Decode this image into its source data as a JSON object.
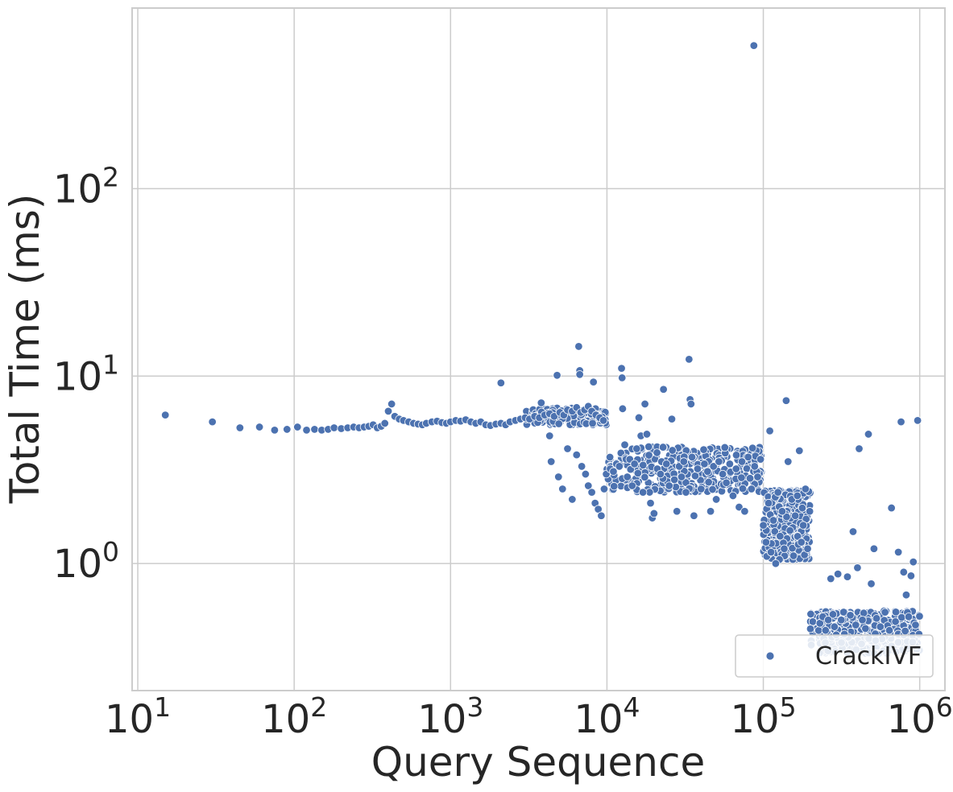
{
  "chart_data": {
    "type": "scatter",
    "title": "",
    "xlabel": "Query Sequence",
    "ylabel": "Total Time (ms)",
    "x_scale": "log",
    "y_scale": "log",
    "xlim": [
      9.2,
      1450000
    ],
    "ylim": [
      0.21,
      920
    ],
    "x_ticks": [
      10,
      100,
      1000,
      10000,
      100000,
      1000000
    ],
    "x_tick_labels": [
      {
        "base": "10",
        "exp": "1"
      },
      {
        "base": "10",
        "exp": "2"
      },
      {
        "base": "10",
        "exp": "3"
      },
      {
        "base": "10",
        "exp": "4"
      },
      {
        "base": "10",
        "exp": "5"
      },
      {
        "base": "10",
        "exp": "6"
      }
    ],
    "y_ticks": [
      1,
      10,
      100
    ],
    "y_tick_labels": [
      {
        "base": "10",
        "exp": "0"
      },
      {
        "base": "10",
        "exp": "1"
      },
      {
        "base": "10",
        "exp": "2"
      }
    ],
    "grid": true,
    "legend_position": "lower right",
    "series": [
      {
        "name": "CrackIVF",
        "color": "#4c72b0",
        "points": [
          [
            15,
            6.2
          ],
          [
            30,
            5.7
          ],
          [
            45,
            5.3
          ],
          [
            60,
            5.35
          ],
          [
            75,
            5.15
          ],
          [
            90,
            5.2
          ],
          [
            105,
            5.35
          ],
          [
            120,
            5.15
          ],
          [
            135,
            5.2
          ],
          [
            150,
            5.15
          ],
          [
            165,
            5.2
          ],
          [
            180,
            5.3
          ],
          [
            200,
            5.25
          ],
          [
            220,
            5.3
          ],
          [
            240,
            5.35
          ],
          [
            260,
            5.3
          ],
          [
            280,
            5.35
          ],
          [
            300,
            5.4
          ],
          [
            320,
            5.5
          ],
          [
            340,
            5.3
          ],
          [
            360,
            5.4
          ],
          [
            380,
            5.6
          ],
          [
            400,
            6.5
          ],
          [
            420,
            7.1
          ],
          [
            440,
            6.1
          ],
          [
            470,
            5.9
          ],
          [
            500,
            5.8
          ],
          [
            540,
            5.7
          ],
          [
            580,
            5.6
          ],
          [
            620,
            5.55
          ],
          [
            660,
            5.5
          ],
          [
            700,
            5.6
          ],
          [
            760,
            5.7
          ],
          [
            820,
            5.75
          ],
          [
            880,
            5.65
          ],
          [
            940,
            5.6
          ],
          [
            1000,
            5.7
          ],
          [
            1080,
            5.8
          ],
          [
            1160,
            5.75
          ],
          [
            1250,
            5.85
          ],
          [
            1350,
            5.7
          ],
          [
            1450,
            5.6
          ],
          [
            1560,
            5.7
          ],
          [
            1680,
            5.5
          ],
          [
            1800,
            5.45
          ],
          [
            1950,
            5.55
          ],
          [
            2100,
            5.6
          ],
          [
            2250,
            5.5
          ],
          [
            2400,
            5.7
          ],
          [
            2600,
            5.8
          ],
          [
            2800,
            5.9
          ],
          [
            3000,
            6.0
          ],
          [
            3200,
            5.9
          ],
          [
            3450,
            6.1
          ],
          [
            3700,
            6.0
          ],
          [
            4000,
            6.2
          ],
          [
            4300,
            6.3
          ],
          [
            4600,
            6.1
          ],
          [
            5000,
            6.4
          ],
          [
            5300,
            6.2
          ],
          [
            5600,
            6.6
          ],
          [
            6000,
            6.5
          ],
          [
            6400,
            6.8
          ],
          [
            6800,
            6.4
          ],
          [
            7200,
            6.6
          ],
          [
            7600,
            6.9
          ],
          [
            8000,
            6.5
          ],
          [
            8500,
            6.2
          ],
          [
            9000,
            6.0
          ],
          [
            9500,
            5.8
          ],
          [
            2100,
            9.2
          ],
          [
            4800,
            10.1
          ],
          [
            6600,
            14.4
          ],
          [
            6700,
            10.7
          ],
          [
            6700,
            10.2
          ],
          [
            8200,
            9.3
          ],
          [
            3800,
            7.2
          ],
          [
            4300,
            4.8
          ],
          [
            4400,
            3.5
          ],
          [
            4900,
            2.9
          ],
          [
            5200,
            2.5
          ],
          [
            5600,
            4.1
          ],
          [
            6000,
            2.2
          ],
          [
            6400,
            3.8
          ],
          [
            6900,
            3.3
          ],
          [
            7300,
            3.0
          ],
          [
            7600,
            2.6
          ],
          [
            8000,
            2.4
          ],
          [
            8400,
            2.1
          ],
          [
            8800,
            1.95
          ],
          [
            9200,
            1.8
          ],
          [
            9600,
            2.5
          ],
          [
            9900,
            3.0
          ],
          [
            10500,
            3.2
          ],
          [
            11000,
            3.1
          ],
          [
            11500,
            3.4
          ],
          [
            12000,
            3.3
          ],
          [
            12400,
            11.0
          ],
          [
            12500,
            9.8
          ],
          [
            12600,
            6.7
          ],
          [
            13000,
            4.3
          ],
          [
            13500,
            2.9
          ],
          [
            14000,
            3.6
          ],
          [
            14500,
            2.6
          ],
          [
            15000,
            3.4
          ],
          [
            15500,
            4.1
          ],
          [
            16000,
            6.0
          ],
          [
            16500,
            4.8
          ],
          [
            17000,
            2.4
          ],
          [
            17500,
            7.1
          ],
          [
            18000,
            4.9
          ],
          [
            18500,
            4.2
          ],
          [
            19000,
            2.1
          ],
          [
            19500,
            1.75
          ],
          [
            20000,
            1.85
          ],
          [
            21000,
            3.2
          ],
          [
            22000,
            3.0
          ],
          [
            23000,
            8.5
          ],
          [
            24000,
            3.4
          ],
          [
            25000,
            2.6
          ],
          [
            26000,
            5.9
          ],
          [
            27000,
            2.8
          ],
          [
            28000,
            1.9
          ],
          [
            29000,
            3.3
          ],
          [
            30000,
            2.9
          ],
          [
            31000,
            3.5
          ],
          [
            32000,
            2.4
          ],
          [
            33500,
            12.3
          ],
          [
            34000,
            7.5
          ],
          [
            34500,
            7.1
          ],
          [
            35000,
            3.7
          ],
          [
            36000,
            1.8
          ],
          [
            38000,
            3.2
          ],
          [
            40000,
            2.5
          ],
          [
            42000,
            3.4
          ],
          [
            44000,
            3.1
          ],
          [
            46000,
            1.9
          ],
          [
            48000,
            3.3
          ],
          [
            50000,
            2.2
          ],
          [
            52000,
            3.5
          ],
          [
            55000,
            3.0
          ],
          [
            58000,
            2.7
          ],
          [
            61000,
            3.4
          ],
          [
            64000,
            2.3
          ],
          [
            67000,
            3.2
          ],
          [
            70000,
            2.0
          ],
          [
            73000,
            3.5
          ],
          [
            76000,
            1.9
          ],
          [
            80000,
            3.7
          ],
          [
            84000,
            2.5
          ],
          [
            88000,
            3.3
          ],
          [
            92000,
            2.9
          ],
          [
            96000,
            3.6
          ],
          [
            87000,
            580
          ],
          [
            100000,
            1.6
          ],
          [
            104000,
            1.3
          ],
          [
            108000,
            2.1
          ],
          [
            110000,
            5.1
          ],
          [
            112000,
            1.15
          ],
          [
            116000,
            1.7
          ],
          [
            120000,
            1.0
          ],
          [
            124000,
            2.4
          ],
          [
            128000,
            1.4
          ],
          [
            132000,
            1.9
          ],
          [
            136000,
            1.2
          ],
          [
            140000,
            7.4
          ],
          [
            144000,
            3.5
          ],
          [
            148000,
            1.5
          ],
          [
            152000,
            2.2
          ],
          [
            156000,
            1.1
          ],
          [
            160000,
            1.8
          ],
          [
            165000,
            2.3
          ],
          [
            170000,
            4.0
          ],
          [
            175000,
            1.3
          ],
          [
            180000,
            1.6
          ],
          [
            186000,
            2.5
          ],
          [
            192000,
            1.2
          ],
          [
            198000,
            1.9
          ],
          [
            230000,
            0.48
          ],
          [
            240000,
            0.52
          ],
          [
            250000,
            0.44
          ],
          [
            260000,
            0.5
          ],
          [
            270000,
            0.83
          ],
          [
            285000,
            0.46
          ],
          [
            300000,
            0.88
          ],
          [
            315000,
            0.5
          ],
          [
            330000,
            0.42
          ],
          [
            345000,
            0.85
          ],
          [
            360000,
            0.53
          ],
          [
            375000,
            1.48
          ],
          [
            390000,
            0.47
          ],
          [
            400000,
            0.95
          ],
          [
            410000,
            4.1
          ],
          [
            430000,
            0.5
          ],
          [
            450000,
            0.45
          ],
          [
            470000,
            4.9
          ],
          [
            490000,
            0.78
          ],
          [
            510000,
            1.2
          ],
          [
            530000,
            0.51
          ],
          [
            560000,
            0.46
          ],
          [
            600000,
            0.55
          ],
          [
            640000,
            0.44
          ],
          [
            660000,
            1.98
          ],
          [
            700000,
            0.49
          ],
          [
            730000,
            1.15
          ],
          [
            760000,
            5.7
          ],
          [
            790000,
            0.9
          ],
          [
            820000,
            0.68
          ],
          [
            850000,
            0.52
          ],
          [
            880000,
            0.86
          ],
          [
            910000,
            1.02
          ],
          [
            940000,
            0.47
          ],
          [
            970000,
            5.8
          ],
          [
            990000,
            0.42
          ]
        ],
        "dense_regions": [
          {
            "x_range": [
              3000,
              9900
            ],
            "y_range": [
              5.5,
              6.8
            ],
            "count": 160
          },
          {
            "x_range": [
              10000,
              98000
            ],
            "y_range": [
              2.4,
              4.2
            ],
            "count": 340
          },
          {
            "x_range": [
              100000,
              199000
            ],
            "y_range": [
              1.05,
              2.45
            ],
            "count": 380
          },
          {
            "x_range": [
              200000,
              1000000
            ],
            "y_range": [
              0.33,
              0.56
            ],
            "count": 380
          }
        ]
      }
    ]
  }
}
